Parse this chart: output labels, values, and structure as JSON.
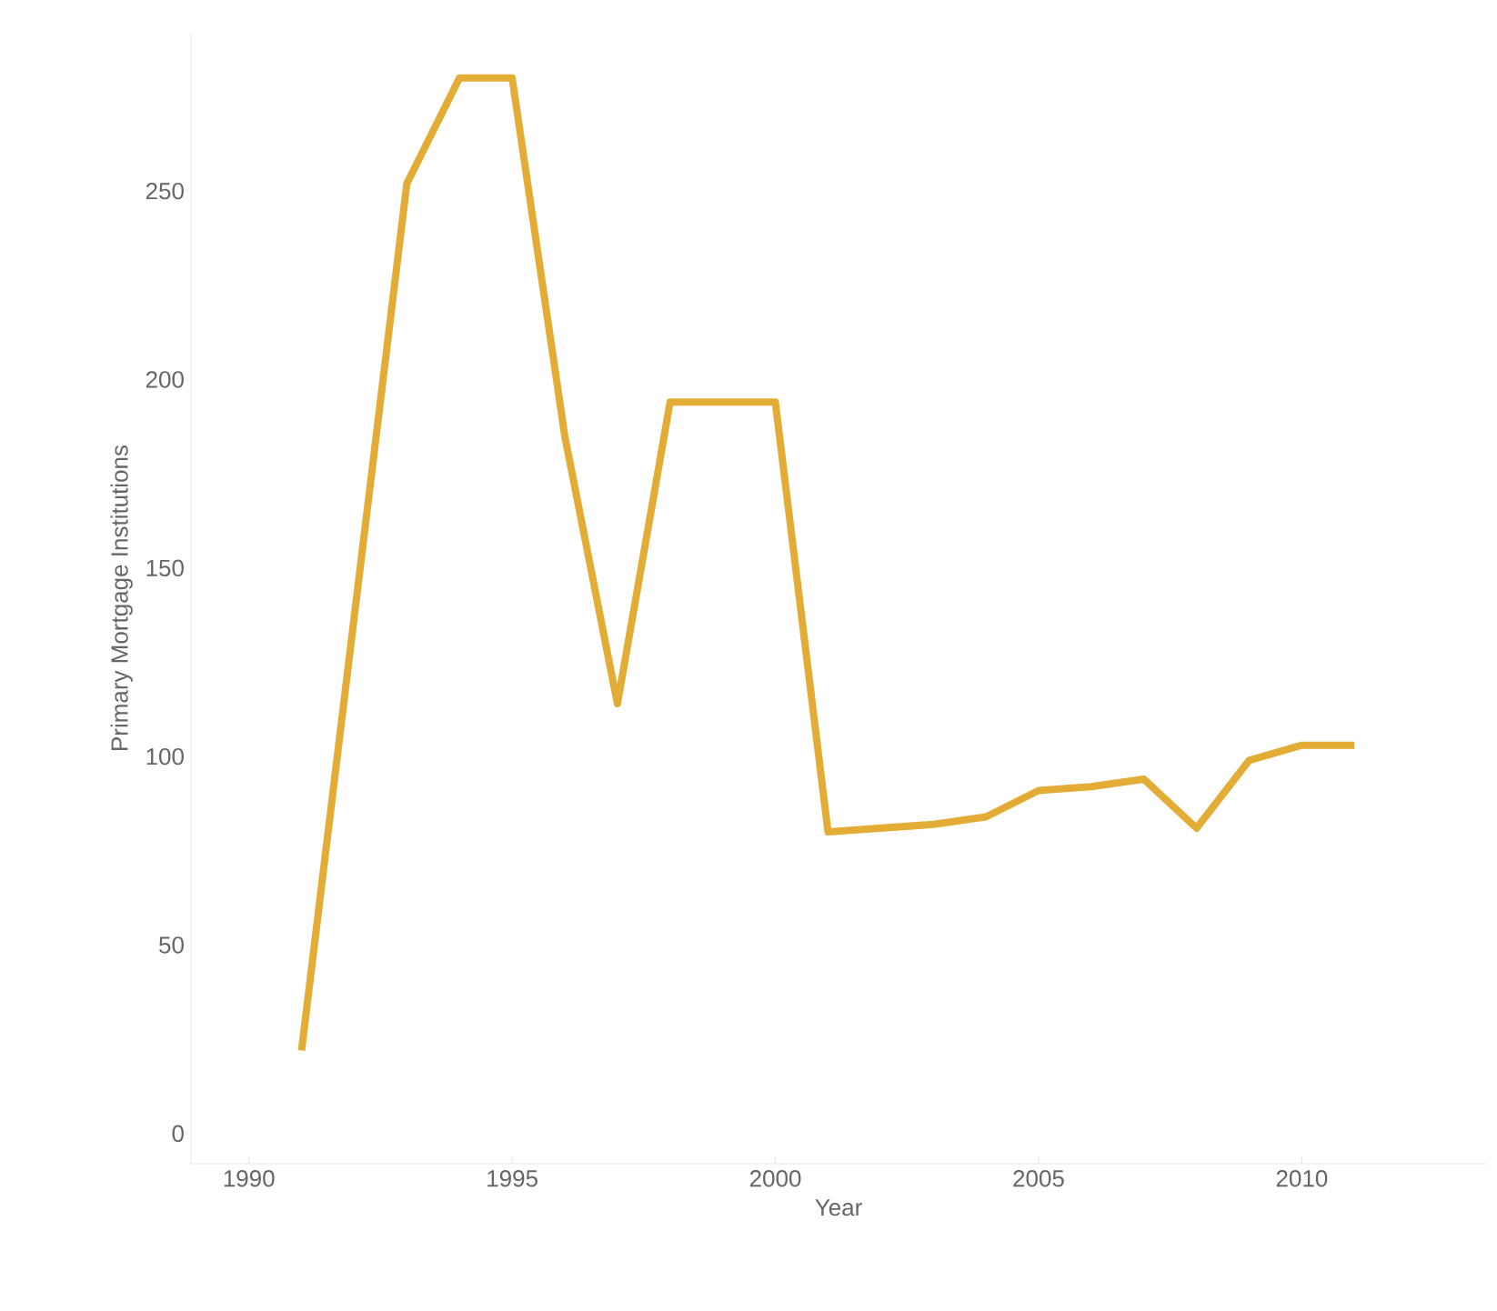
{
  "chart_data": {
    "type": "line",
    "xlabel": "Year",
    "ylabel": "Primary Mortgage Institutions",
    "x": [
      1991,
      1993,
      1994,
      1995,
      1996,
      1997,
      1998,
      1999,
      2000,
      2001,
      2002,
      2003,
      2004,
      2005,
      2006,
      2007,
      2008,
      2009,
      2010,
      2011
    ],
    "series": [
      {
        "color": "#e3ad35",
        "values": [
          22,
          252,
          280,
          280,
          185,
          114,
          194,
          194,
          194,
          80,
          81,
          82,
          84,
          91,
          92,
          94,
          81,
          99,
          103,
          103
        ]
      }
    ],
    "xlim": [
      1988.9,
      2013.5
    ],
    "ylim": [
      -8,
      292
    ],
    "xticks": [
      1990,
      1995,
      2000,
      2005,
      2010
    ],
    "yticks": [
      0,
      50,
      100,
      150,
      200,
      250
    ],
    "grid": false,
    "marker": "none",
    "line_style": "solid"
  }
}
